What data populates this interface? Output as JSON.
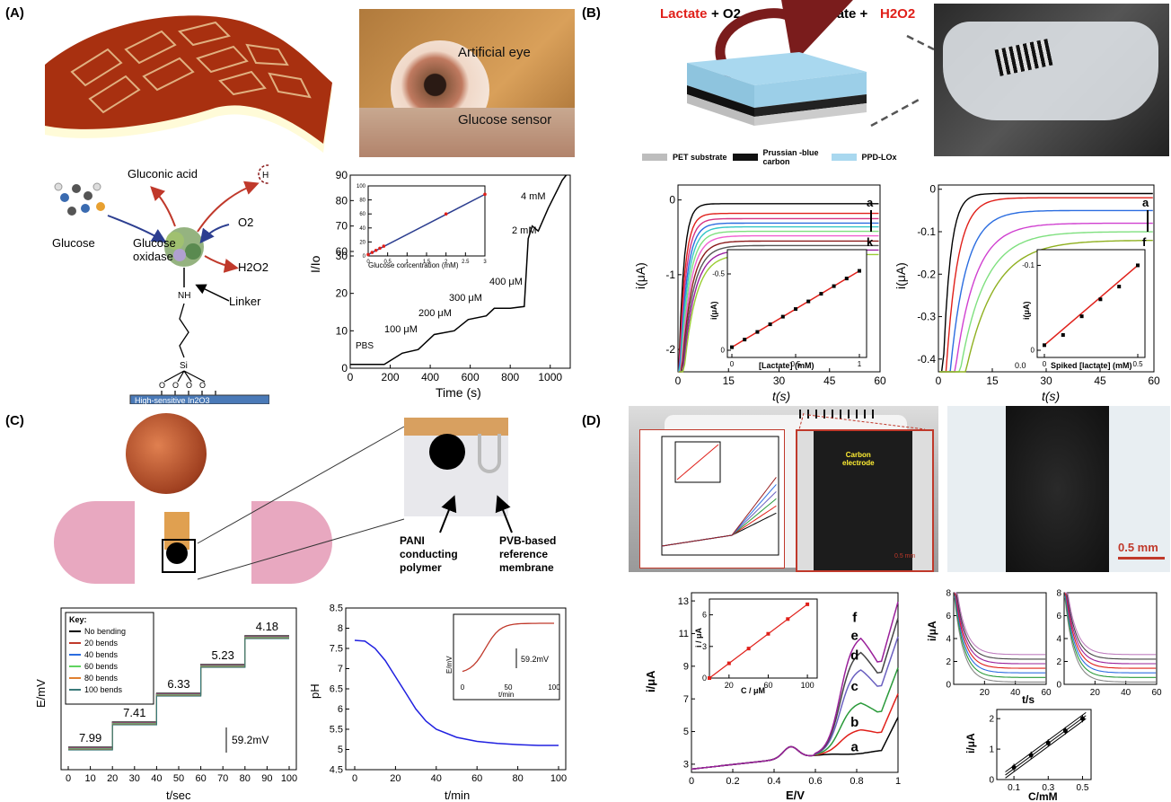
{
  "panels": {
    "a": "(A)",
    "b": "(B)",
    "c": "(C)",
    "d": "(D)"
  },
  "colors": {
    "red_text": "#e0201a",
    "gray": "#bdbdbd",
    "blue_layer": "#a9d8ef",
    "dark_arrow": "#7a1c1c"
  },
  "panel_a": {
    "eye_label": "Artificial eye",
    "sensor_label": "Glucose sensor",
    "gluconic": "Gluconic acid",
    "h_plus": "H+",
    "o2": "O2",
    "glucose": "Glucose",
    "enzyme_line1": "Glucose",
    "enzyme_line2": "oxidase",
    "h2o2": "H2O2",
    "linker": "Linker",
    "nh": "NH",
    "si": "Si",
    "substrate": "High-sensitive In2O3",
    "chart_labels": {
      "ylabel": "I/Io",
      "xlabel": "Time (s)",
      "pbs": "PBS",
      "c100": "100 μM",
      "c200": "200 μM",
      "c300": "300 μM",
      "c400": "400 μM",
      "c2": "2 mM",
      "c4": "4 mM",
      "inset_xlabel": "Glucose concentration (mM)",
      "inset_ylabel": "I/Io"
    }
  },
  "panel_b": {
    "reaction_left": "Lactate",
    "reaction_left_o2": "+ O2",
    "reaction_right": "Pyruvate +",
    "reaction_right_h2o2": "H2O2",
    "legend": [
      "PET substrate",
      "Prussian -blue carbon",
      "PPD-LOx"
    ],
    "chart1_labels": {
      "ylabel": "i(μA)",
      "xlabel": "t(s)",
      "a": "a",
      "k": "k",
      "inset_xlabel": "[Lactate] (mM)",
      "inset_ylabel": "i(μA)"
    },
    "chart2_labels": {
      "ylabel": "i(μA)",
      "xlabel": "t(s)",
      "a": "a",
      "f": "f",
      "inset_xlabel": "Spiked [lactate] (mM)",
      "inset_ylabel": "i(μA)",
      "inset_x0": "0.0"
    }
  },
  "panel_c": {
    "pani": [
      "PANI",
      "conducting",
      "polymer"
    ],
    "pvb": [
      "PVB-based",
      "reference",
      "membrane"
    ],
    "chart1_labels": {
      "ylabel": "E/mV",
      "xlabel": "t/sec",
      "key_title": "Key:",
      "key": [
        "No bending",
        "20 bends",
        "40 bends",
        "60 bends",
        "80 bends",
        "100 bends"
      ],
      "scale": "59.2mV"
    },
    "chart2_labels": {
      "ylabel": "pH",
      "xlabel": "t/min",
      "inset_ylabel": "E/mV",
      "inset_xlabel": "t/min",
      "scale": "59.2mV"
    }
  },
  "panel_d": {
    "carbon_label": [
      "Carbon",
      "electrode"
    ],
    "scale_small": "0.5 mm",
    "scale_big": "0.5 mm",
    "chart1_labels": {
      "ylabel": "i/μA",
      "xlabel": "E/V",
      "inset_xlabel": "C / μM",
      "inset_ylabel": "i / μA"
    },
    "small_chart_labels": {
      "ylabel": "i/μA",
      "xlabel": "t/s",
      "cal_ylabel": "i/μA",
      "cal_xlabel": "C/mM"
    }
  },
  "chart_data": [
    {
      "type": "line",
      "id": "A-glucose",
      "xlabel": "Time (s)",
      "ylabel": "I/Io",
      "xlim": [
        0,
        1100
      ],
      "ylim": [
        0,
        90
      ],
      "xticks": [
        0,
        200,
        400,
        600,
        800,
        1000
      ],
      "yticks": [
        0,
        10,
        20,
        30,
        60,
        70,
        80,
        90
      ],
      "axis_break": [
        30,
        60
      ],
      "series": [
        {
          "x": [
            0,
            170,
            260,
            340,
            420,
            520,
            590,
            680,
            720,
            800,
            870,
            890,
            910,
            940,
            990,
            1060,
            1080
          ],
          "y": [
            1,
            1,
            4,
            5,
            9,
            10,
            13,
            14,
            16,
            16,
            16.5,
            65,
            70,
            68,
            77,
            88,
            90
          ]
        }
      ],
      "annotations": [
        "PBS",
        "100 μM",
        "200 μM",
        "300 μM",
        "400 μM",
        "2 mM",
        "4 mM"
      ],
      "inset": {
        "xlabel": "Glucose concentration (mM)",
        "ylabel": "I/Io",
        "xlim": [
          0,
          3.0
        ],
        "ylim": [
          0,
          100
        ],
        "xticks": [
          0.0,
          0.5,
          1.0,
          1.5,
          2.0,
          2.5,
          3.0
        ],
        "yticks": [
          0,
          20,
          40,
          60,
          80,
          100
        ],
        "x": [
          0.0,
          0.1,
          0.2,
          0.3,
          0.4,
          2.0,
          3.0
        ],
        "y": [
          2,
          5,
          8,
          11,
          14,
          60,
          88
        ]
      }
    },
    {
      "type": "line",
      "id": "B-lactate",
      "xlabel": "t(s)",
      "ylabel": "i(μA)",
      "xlim": [
        0,
        60
      ],
      "ylim": [
        -2.3,
        0.2
      ],
      "xticks": [
        0,
        15,
        30,
        45,
        60
      ],
      "yticks": [
        0,
        -1,
        -2
      ],
      "series_labels": [
        "a",
        "k"
      ],
      "steady_state": [
        -0.05,
        -0.18,
        -0.25,
        -0.31,
        -0.36,
        -0.42,
        -0.48,
        -0.55,
        -0.61,
        -0.67,
        -0.73
      ],
      "inset": {
        "xlabel": "[Lactate] (mM)",
        "ylabel": "i(μA)",
        "xlim": [
          0,
          1.0
        ],
        "ylim": [
          -0.6,
          0.0
        ],
        "xticks": [
          0.0,
          0.5,
          1.0
        ],
        "yticks": [
          -0.5,
          0.0
        ],
        "x": [
          0.0,
          0.1,
          0.2,
          0.3,
          0.4,
          0.5,
          0.6,
          0.7,
          0.8,
          0.9,
          1.0
        ],
        "y": [
          -0.02,
          -0.07,
          -0.12,
          -0.17,
          -0.22,
          -0.27,
          -0.32,
          -0.37,
          -0.42,
          -0.47,
          -0.52
        ]
      }
    },
    {
      "type": "line",
      "id": "B-spiked",
      "xlabel": "t(s)",
      "ylabel": "i(μA)",
      "xlim": [
        0,
        60
      ],
      "ylim": [
        -0.43,
        0.01
      ],
      "xticks": [
        0,
        15,
        30,
        45,
        60
      ],
      "yticks": [
        0,
        -0.1,
        -0.2,
        -0.3,
        -0.4
      ],
      "series_labels": [
        "a",
        "f"
      ],
      "steady_state": [
        -0.01,
        -0.02,
        -0.05,
        -0.08,
        -0.1,
        -0.12
      ],
      "inset": {
        "xlabel": "Spiked [lactate] (mM)",
        "ylabel": "i(μA)",
        "xlim": [
          0,
          0.5
        ],
        "ylim": [
          -0.11,
          0.0
        ],
        "xticks": [
          0.0,
          0.5
        ],
        "yticks": [
          -0.1,
          0.0
        ],
        "x": [
          0.0,
          0.1,
          0.2,
          0.3,
          0.4,
          0.5
        ],
        "y": [
          -0.006,
          -0.018,
          -0.04,
          -0.06,
          -0.075,
          -0.1
        ]
      }
    },
    {
      "type": "line",
      "id": "C-bending",
      "xlabel": "t/sec",
      "ylabel": "E/mV",
      "xlim": [
        0,
        100
      ],
      "xticks": [
        0,
        10,
        20,
        30,
        40,
        50,
        60,
        70,
        80,
        90,
        100
      ],
      "steps": [
        {
          "x": [
            0,
            20
          ],
          "label": "7.99"
        },
        {
          "x": [
            20,
            40
          ],
          "label": "7.41"
        },
        {
          "x": [
            40,
            60
          ],
          "label": "6.33"
        },
        {
          "x": [
            60,
            80
          ],
          "label": "5.23"
        },
        {
          "x": [
            80,
            100
          ],
          "label": "4.18"
        }
      ],
      "series": [
        "No bending",
        "20 bends",
        "40 bends",
        "60 bends",
        "80 bends",
        "100 bends"
      ],
      "scale_bar": "59.2mV"
    },
    {
      "type": "line",
      "id": "C-pH",
      "xlabel": "t/min",
      "ylabel": "pH",
      "xlim": [
        0,
        100
      ],
      "ylim": [
        4.5,
        8.5
      ],
      "xticks": [
        0,
        20,
        40,
        60,
        80,
        100
      ],
      "yticks": [
        4.5,
        5,
        5.5,
        6,
        6.5,
        7,
        7.5,
        8,
        8.5
      ],
      "series": [
        {
          "x": [
            0,
            5,
            10,
            15,
            20,
            25,
            30,
            35,
            40,
            50,
            60,
            70,
            80,
            90,
            100
          ],
          "y": [
            7.7,
            7.68,
            7.5,
            7.2,
            6.8,
            6.4,
            6.0,
            5.7,
            5.5,
            5.3,
            5.2,
            5.15,
            5.12,
            5.1,
            5.1
          ]
        }
      ],
      "inset": {
        "xlabel": "t/min",
        "ylabel": "E/mV",
        "xlim": [
          0,
          100
        ],
        "xticks": [
          0,
          50,
          100
        ],
        "scale_bar": "59.2mV"
      }
    },
    {
      "type": "line",
      "id": "D-voltammetry",
      "xlabel": "E/V",
      "ylabel": "i/μA",
      "xlim": [
        0,
        1.0
      ],
      "ylim": [
        2.5,
        13.5
      ],
      "xticks": [
        0.0,
        0.2,
        0.4,
        0.6,
        0.8,
        1.0
      ],
      "yticks": [
        3,
        5,
        7,
        9,
        11,
        13
      ],
      "series_labels": [
        "a",
        "b",
        "c",
        "d",
        "e",
        "f"
      ],
      "inset": {
        "xlabel": "C / μM",
        "ylabel": "i / μA",
        "xlim": [
          0,
          110
        ],
        "ylim": [
          0,
          7.5
        ],
        "xticks": [
          20,
          60,
          100
        ],
        "yticks": [
          0,
          3,
          6
        ],
        "x": [
          0,
          20,
          40,
          60,
          80,
          100
        ],
        "y": [
          0,
          1.4,
          2.8,
          4.2,
          5.6,
          7.0
        ]
      }
    },
    {
      "type": "line",
      "id": "D-amperometry",
      "xlabel": "t/s",
      "ylabel": "i/μA",
      "xlim": [
        0,
        60
      ],
      "ylim": [
        0,
        8
      ],
      "xticks": [
        20,
        40,
        60
      ],
      "yticks": [
        0,
        2,
        4,
        6,
        8
      ]
    },
    {
      "type": "scatter",
      "id": "D-calibration",
      "xlabel": "C/mM",
      "ylabel": "i/μA",
      "xlim": [
        0,
        0.55
      ],
      "ylim": [
        0,
        2.3
      ],
      "xticks": [
        0.1,
        0.3,
        0.5
      ],
      "yticks": [
        0,
        1,
        2
      ],
      "x": [
        0.1,
        0.2,
        0.3,
        0.4,
        0.5
      ],
      "y": [
        0.4,
        0.8,
        1.2,
        1.6,
        2.0
      ]
    }
  ]
}
